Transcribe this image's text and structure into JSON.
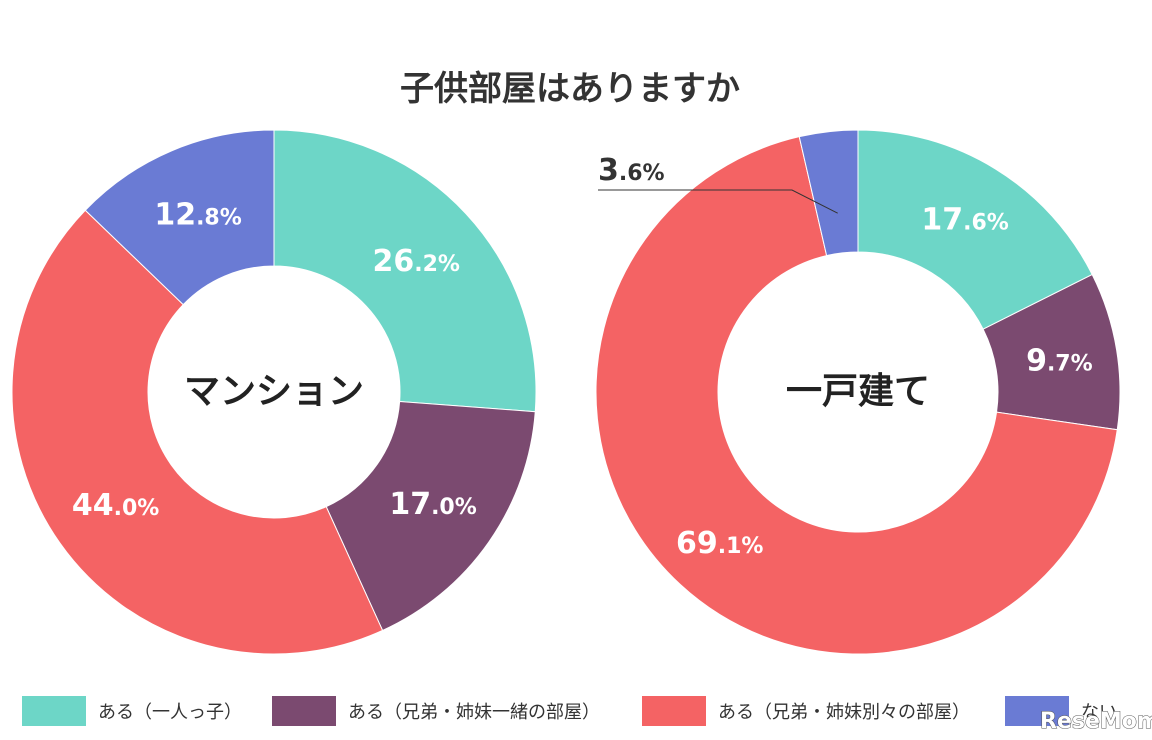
{
  "title": "子供部屋はありますか",
  "colors": {
    "teal": "#6dd6c7",
    "purple": "#7b4a70",
    "red": "#f46364",
    "blue": "#6a7bd4"
  },
  "legend": [
    {
      "label": "ある（一人っ子）",
      "color": "#6dd6c7"
    },
    {
      "label": "ある（兄弟・姉妹一緒の部屋）",
      "color": "#7b4a70"
    },
    {
      "label": "ある（兄弟・姉妹別々の部屋）",
      "color": "#f46364"
    },
    {
      "label": "ない",
      "color": "#6a7bd4"
    }
  ],
  "watermark": "ReseMom",
  "chart_data": [
    {
      "type": "pie",
      "center_label": "マンション",
      "categories": [
        "ある（一人っ子）",
        "ある（兄弟・姉妹一緒の部屋）",
        "ある（兄弟・姉妹別々の部屋）",
        "ない"
      ],
      "values": [
        26.2,
        17.0,
        44.0,
        12.8
      ],
      "labels": [
        {
          "int": "26",
          "dec": ".2%"
        },
        {
          "int": "17",
          "dec": ".0%"
        },
        {
          "int": "44",
          "dec": ".0%"
        },
        {
          "int": "12",
          "dec": ".8%"
        }
      ]
    },
    {
      "type": "pie",
      "center_label": "一戸建て",
      "categories": [
        "ある（一人っ子）",
        "ある（兄弟・姉妹一緒の部屋）",
        "ある（兄弟・姉妹別々の部屋）",
        "ない"
      ],
      "values": [
        17.6,
        9.7,
        69.1,
        3.6
      ],
      "labels": [
        {
          "int": "17",
          "dec": ".6%"
        },
        {
          "int": "9",
          "dec": ".7%"
        },
        {
          "int": "69",
          "dec": ".1%"
        },
        {
          "int": "3",
          "dec": ".6%"
        }
      ]
    }
  ]
}
